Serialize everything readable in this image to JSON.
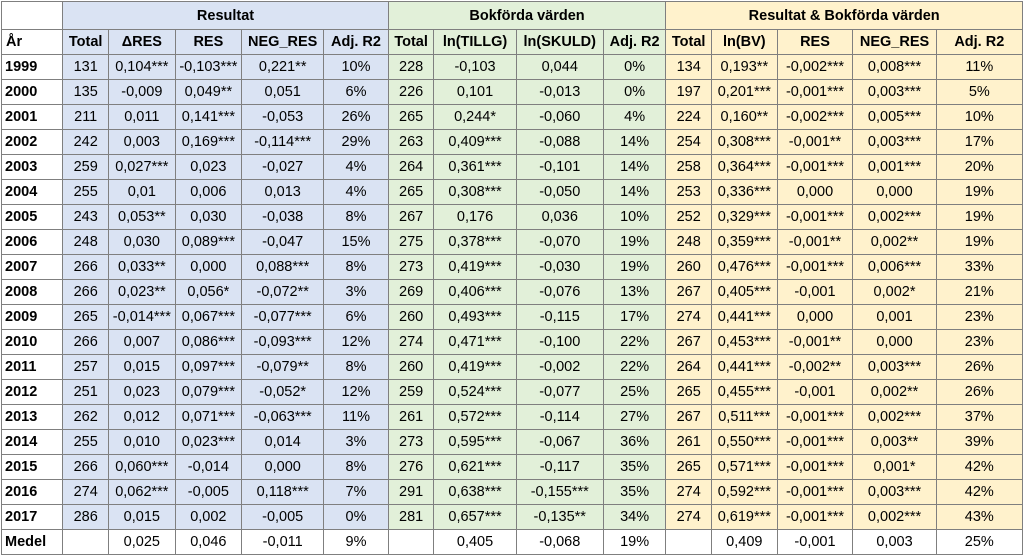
{
  "groups": {
    "resultat": "Resultat",
    "bokforda": "Bokförda värden",
    "combined": "Resultat &  Bokförda värden"
  },
  "headers": [
    "År",
    "Total",
    "ΔRES",
    "RES",
    "NEG_RES",
    "Adj. R2",
    "Total",
    "ln(TILLG)",
    "ln(SKULD)",
    "Adj. R2",
    "Total",
    "ln(BV)",
    "RES",
    "NEG_RES",
    "Adj. R2"
  ],
  "rows": [
    [
      "1999",
      "131",
      "0,104***",
      "-0,103***",
      "0,221**",
      "10%",
      "228",
      "-0,103",
      "0,044",
      "0%",
      "134",
      "0,193**",
      "-0,002***",
      "0,008***",
      "11%"
    ],
    [
      "2000",
      "135",
      "-0,009",
      "0,049**",
      "0,051",
      "6%",
      "226",
      "0,101",
      "-0,013",
      "0%",
      "197",
      "0,201***",
      "-0,001***",
      "0,003***",
      "5%"
    ],
    [
      "2001",
      "211",
      "0,011",
      "0,141***",
      "-0,053",
      "26%",
      "265",
      "0,244*",
      "-0,060",
      "4%",
      "224",
      "0,160**",
      "-0,002***",
      "0,005***",
      "10%"
    ],
    [
      "2002",
      "242",
      "0,003",
      "0,169***",
      "-0,114***",
      "29%",
      "263",
      "0,409***",
      "-0,088",
      "14%",
      "254",
      "0,308***",
      "-0,001**",
      "0,003***",
      "17%"
    ],
    [
      "2003",
      "259",
      "0,027***",
      "0,023",
      "-0,027",
      "4%",
      "264",
      "0,361***",
      "-0,101",
      "14%",
      "258",
      "0,364***",
      "-0,001***",
      "0,001***",
      "20%"
    ],
    [
      "2004",
      "255",
      "0,01",
      "0,006",
      "0,013",
      "4%",
      "265",
      "0,308***",
      "-0,050",
      "14%",
      "253",
      "0,336***",
      "0,000",
      "0,000",
      "19%"
    ],
    [
      "2005",
      "243",
      "0,053**",
      "0,030",
      "-0,038",
      "8%",
      "267",
      "0,176",
      "0,036",
      "10%",
      "252",
      "0,329***",
      "-0,001***",
      "0,002***",
      "19%"
    ],
    [
      "2006",
      "248",
      "0,030",
      "0,089***",
      "-0,047",
      "15%",
      "275",
      "0,378***",
      "-0,070",
      "19%",
      "248",
      "0,359***",
      "-0,001**",
      "0,002**",
      "19%"
    ],
    [
      "2007",
      "266",
      "0,033**",
      "0,000",
      "0,088***",
      "8%",
      "273",
      "0,419***",
      "-0,030",
      "19%",
      "260",
      "0,476***",
      "-0,001***",
      "0,006***",
      "33%"
    ],
    [
      "2008",
      "266",
      "0,023**",
      "0,056*",
      "-0,072**",
      "3%",
      "269",
      "0,406***",
      "-0,076",
      "13%",
      "267",
      "0,405***",
      "-0,001",
      "0,002*",
      "21%"
    ],
    [
      "2009",
      "265",
      "-0,014***",
      "0,067***",
      "-0,077***",
      "6%",
      "260",
      "0,493***",
      "-0,115",
      "17%",
      "274",
      "0,441***",
      "0,000",
      "0,001",
      "23%"
    ],
    [
      "2010",
      "266",
      "0,007",
      "0,086***",
      "-0,093***",
      "12%",
      "274",
      "0,471***",
      "-0,100",
      "22%",
      "267",
      "0,453***",
      "-0,001**",
      "0,000",
      "23%"
    ],
    [
      "2011",
      "257",
      "0,015",
      "0,097***",
      "-0,079**",
      "8%",
      "260",
      "0,419***",
      "-0,002",
      "22%",
      "264",
      "0,441***",
      "-0,002**",
      "0,003***",
      "26%"
    ],
    [
      "2012",
      "251",
      "0,023",
      "0,079***",
      "-0,052*",
      "12%",
      "259",
      "0,524***",
      "-0,077",
      "25%",
      "265",
      "0,455***",
      "-0,001",
      "0,002**",
      "26%"
    ],
    [
      "2013",
      "262",
      "0,012",
      "0,071***",
      "-0,063***",
      "11%",
      "261",
      "0,572***",
      "-0,114",
      "27%",
      "267",
      "0,511***",
      "-0,001***",
      "0,002***",
      "37%"
    ],
    [
      "2014",
      "255",
      "0,010",
      "0,023***",
      "0,014",
      "3%",
      "273",
      "0,595***",
      "-0,067",
      "36%",
      "261",
      "0,550***",
      "-0,001***",
      "0,003**",
      "39%"
    ],
    [
      "2015",
      "266",
      "0,060***",
      "-0,014",
      "0,000",
      "8%",
      "276",
      "0,621***",
      "-0,117",
      "35%",
      "265",
      "0,571***",
      "-0,001***",
      "0,001*",
      "42%"
    ],
    [
      "2016",
      "274",
      "0,062***",
      "-0,005",
      "0,118***",
      "7%",
      "291",
      "0,638***",
      "-0,155***",
      "35%",
      "274",
      "0,592***",
      "-0,001***",
      "0,003***",
      "42%"
    ],
    [
      "2017",
      "286",
      "0,015",
      "0,002",
      "-0,005",
      "0%",
      "281",
      "0,657***",
      "-0,135**",
      "34%",
      "274",
      "0,619***",
      "-0,001***",
      "0,002***",
      "43%"
    ]
  ],
  "mean": [
    "Medel",
    "",
    "0,025",
    "0,046",
    "-0,011",
    "9%",
    "",
    "0,405",
    "-0,068",
    "19%",
    "",
    "0,409",
    "-0,001",
    "0,003",
    "25%"
  ]
}
